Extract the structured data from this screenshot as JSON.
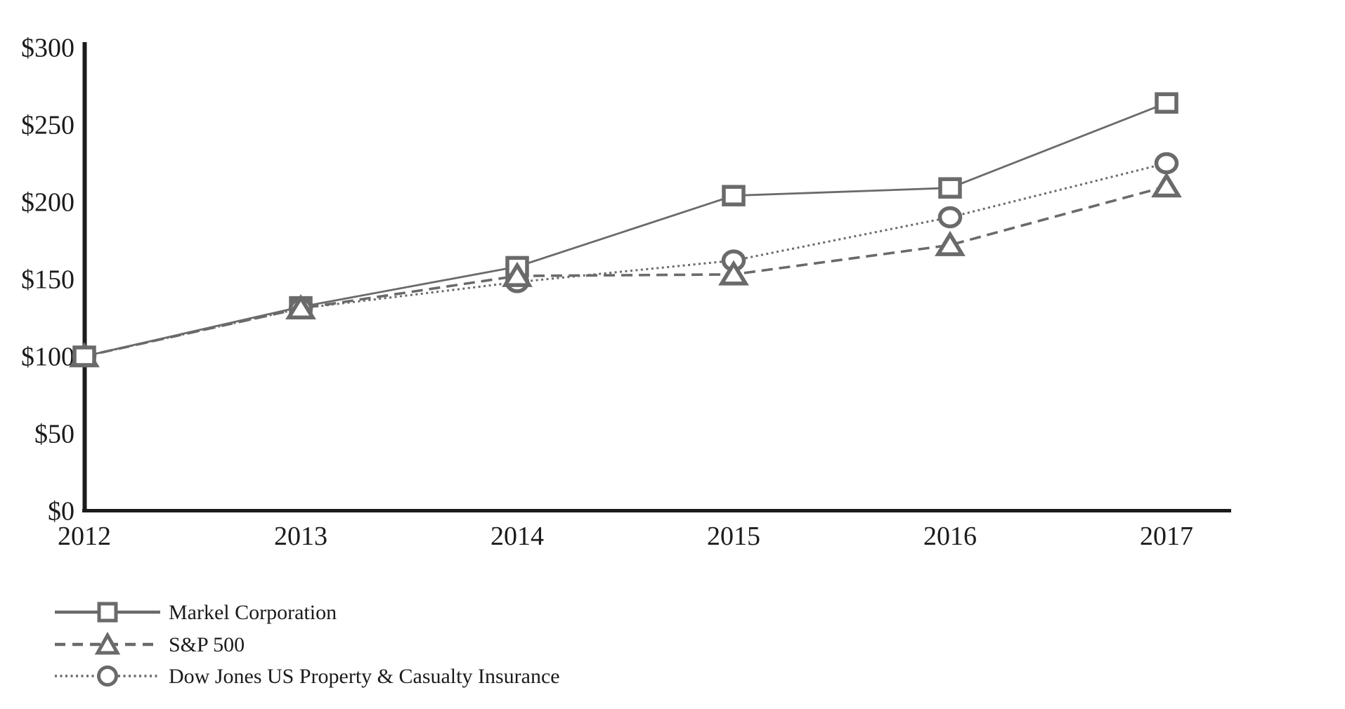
{
  "page": {
    "background": "#ffffff",
    "description": "Cumulative total return performance graph, 2012-2017"
  },
  "chart_data": {
    "type": "line",
    "x": [
      2012,
      2013,
      2014,
      2015,
      2016,
      2017
    ],
    "xtick_labels": [
      "2012",
      "2013",
      "2014",
      "2015",
      "2016",
      "2017"
    ],
    "ytick_labels": [
      "$0",
      "$50",
      "$100",
      "$150",
      "$200",
      "$250",
      "$300"
    ],
    "ytick_values": [
      0,
      50,
      100,
      150,
      200,
      250,
      300
    ],
    "ylim": [
      0,
      300
    ],
    "grid": false,
    "legend_position": "bottom-left",
    "series": [
      {
        "name": "Markel Corporation",
        "marker": "square",
        "line_style": "solid",
        "values": [
          100,
          132,
          158,
          204,
          209,
          264
        ]
      },
      {
        "name": "S&P 500",
        "marker": "triangle",
        "line_style": "dashed",
        "values": [
          100,
          131,
          152,
          153,
          172,
          210
        ]
      },
      {
        "name": "Dow Jones US Property & Casualty Insurance",
        "marker": "circle",
        "line_style": "dotted",
        "values": [
          100,
          131,
          148,
          162,
          190,
          225
        ]
      }
    ],
    "colors": {
      "series": "#6a6a6a",
      "axis": "#1b1b1b",
      "text": "#1b1b1b",
      "marker_fill": "#ffffff"
    }
  }
}
